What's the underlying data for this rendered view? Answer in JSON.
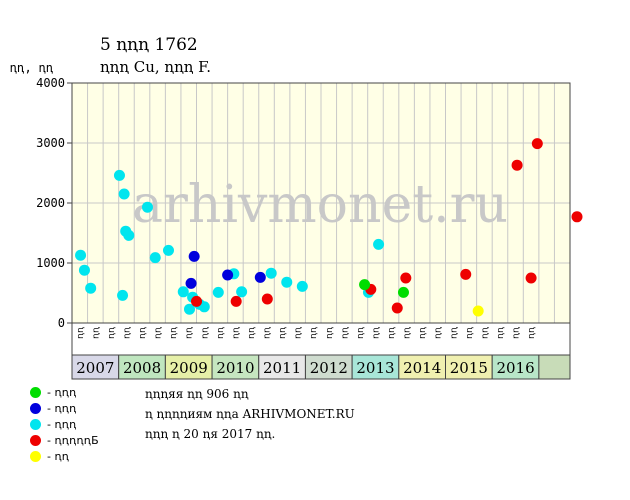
{
  "chart_data": {
    "type": "scatter",
    "title": "5 ꞑꞑꞑ 1762",
    "subtitle": "ꞑꞑꞑ Cu, ꞑꞑꞑ F.",
    "ylabel": "ꞑꞑ, ꞑꞑ",
    "ylim": [
      0,
      4000
    ],
    "yticks": [
      0,
      1000,
      2000,
      3000,
      4000
    ],
    "grid": true,
    "watermark": "arhivmonet.ru",
    "month_labels": [
      "ꞑꞑ",
      "ꞑꞑ",
      "ꞑꞑ"
    ],
    "years": [
      {
        "label": "2007",
        "color": "#d8d8e8"
      },
      {
        "label": "2008",
        "color": "#bfe6bf"
      },
      {
        "label": "2009",
        "color": "#e6f0a8"
      },
      {
        "label": "2010",
        "color": "#c6e6c0"
      },
      {
        "label": "2011",
        "color": "#e8e8e8"
      },
      {
        "label": "2012",
        "color": "#cfdccf"
      },
      {
        "label": "2013",
        "color": "#a8e6d8"
      },
      {
        "label": "2014",
        "color": "#f0f0b0"
      },
      {
        "label": "2015",
        "color": "#f0f0b0"
      },
      {
        "label": "2016",
        "color": "#b8e6c8"
      }
    ],
    "series": [
      {
        "key": "cyan",
        "color": "#00e5ee",
        "points": [
          [
            0.05,
            1130
          ],
          [
            0.3,
            880
          ],
          [
            0.7,
            580
          ],
          [
            2.55,
            2460
          ],
          [
            2.75,
            460
          ],
          [
            2.85,
            2150
          ],
          [
            2.95,
            1530
          ],
          [
            3.15,
            1460
          ],
          [
            4.35,
            1930
          ],
          [
            4.85,
            1090
          ],
          [
            5.7,
            1210
          ],
          [
            6.65,
            520
          ],
          [
            7.05,
            230
          ],
          [
            7.25,
            430
          ],
          [
            7.7,
            310
          ],
          [
            8.0,
            270
          ],
          [
            8.9,
            510
          ],
          [
            9.9,
            820
          ],
          [
            10.4,
            520
          ],
          [
            12.3,
            830
          ],
          [
            13.3,
            680
          ],
          [
            14.3,
            610
          ],
          [
            18.55,
            510
          ],
          [
            19.2,
            1310
          ]
        ]
      },
      {
        "key": "blue",
        "color": "#0000dd",
        "points": [
          [
            7.15,
            660
          ],
          [
            7.35,
            1110
          ],
          [
            9.5,
            800
          ],
          [
            11.6,
            760
          ]
        ]
      },
      {
        "key": "red",
        "color": "#ee0000",
        "points": [
          [
            7.5,
            360
          ],
          [
            10.05,
            360
          ],
          [
            12.05,
            400
          ],
          [
            18.7,
            560
          ],
          [
            20.4,
            250
          ],
          [
            20.95,
            750
          ],
          [
            24.8,
            810
          ],
          [
            28.1,
            2630
          ],
          [
            29.0,
            750
          ],
          [
            29.4,
            2990
          ],
          [
            31.95,
            1770
          ]
        ]
      },
      {
        "key": "green",
        "color": "#00dd00",
        "points": [
          [
            18.3,
            640
          ],
          [
            20.8,
            510
          ]
        ]
      },
      {
        "key": "yellow",
        "color": "#ffff00",
        "points": [
          [
            25.6,
            200
          ]
        ]
      }
    ]
  },
  "legend": [
    {
      "color": "#00dd00",
      "label": "- ꞑꞑꞑ"
    },
    {
      "color": "#0000dd",
      "label": "- ꞑꞑꞑ"
    },
    {
      "color": "#00e5ee",
      "label": "- ꞑꞑꞑ"
    },
    {
      "color": "#ee0000",
      "label": "- ꞑꞑꞑꞑꞑБ"
    },
    {
      "color": "#ffff00",
      "label": "- ꞑꞑ"
    }
  ],
  "footnote": {
    "line1": "ꞑꞑꞑяя ꞑꞑ 906 ꞑꞑ",
    "line2": "ꞑ ꞑꞑꞑꞑиям ꞑꞑа ARHIVMONET.RU",
    "line3": "ꞑꞑꞑ ꞑ 20 ꞑя 2017 ꞑꞑ."
  }
}
